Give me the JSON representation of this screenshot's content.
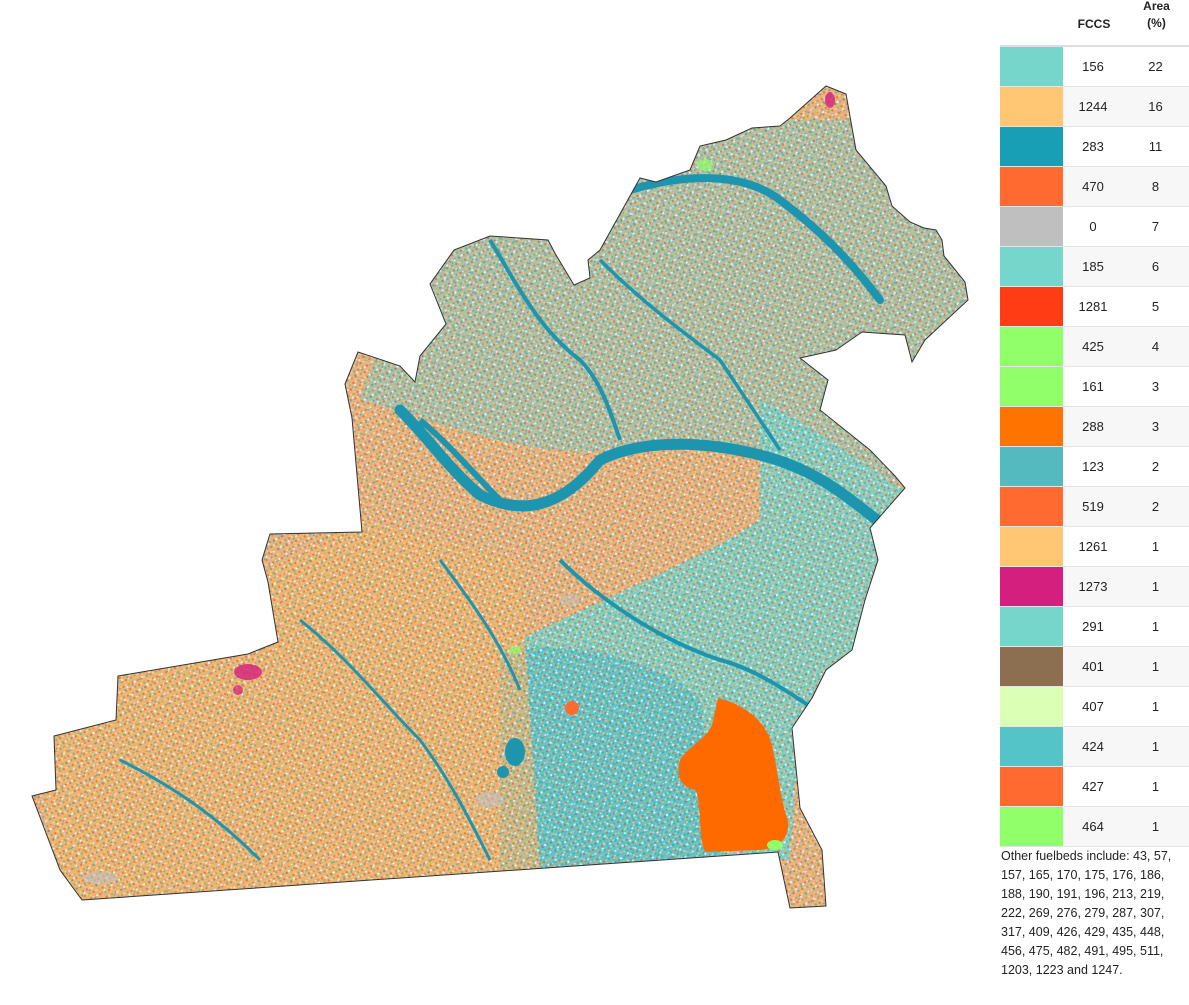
{
  "legend": {
    "header_fccs": "FCCS",
    "header_area_line1": "Area",
    "header_area_line2": "(%)",
    "rows": [
      {
        "fccs": "156",
        "area": "22",
        "color": "#77d6cc"
      },
      {
        "fccs": "1244",
        "area": "16",
        "color": "#ffc673"
      },
      {
        "fccs": "283",
        "area": "11",
        "color": "#189fb5"
      },
      {
        "fccs": "470",
        "area": "8",
        "color": "#ff6a30"
      },
      {
        "fccs": "0",
        "area": "7",
        "color": "#bfbfbf"
      },
      {
        "fccs": "185",
        "area": "6",
        "color": "#77d6cc"
      },
      {
        "fccs": "1281",
        "area": "5",
        "color": "#ff3c14"
      },
      {
        "fccs": "425",
        "area": "4",
        "color": "#90ff6a"
      },
      {
        "fccs": "161",
        "area": "3",
        "color": "#90ff6a"
      },
      {
        "fccs": "288",
        "area": "3",
        "color": "#ff7300"
      },
      {
        "fccs": "123",
        "area": "2",
        "color": "#55b9c0"
      },
      {
        "fccs": "519",
        "area": "2",
        "color": "#ff6a30"
      },
      {
        "fccs": "1261",
        "area": "1",
        "color": "#ffc673"
      },
      {
        "fccs": "1273",
        "area": "1",
        "color": "#d41f7e"
      },
      {
        "fccs": "291",
        "area": "1",
        "color": "#77d6cc"
      },
      {
        "fccs": "401",
        "area": "1",
        "color": "#8c6f51"
      },
      {
        "fccs": "407",
        "area": "1",
        "color": "#dbffb5"
      },
      {
        "fccs": "424",
        "area": "1",
        "color": "#55c4c8"
      },
      {
        "fccs": "427",
        "area": "1",
        "color": "#ff6a30"
      },
      {
        "fccs": "464",
        "area": "1",
        "color": "#90ff6a"
      }
    ],
    "other_note": "Other fuelbeds include: 43, 57, 157, 165, 170, 175, 176, 186, 188, 190, 191, 196, 213, 219, 222, 269, 276, 279, 287, 307, 317, 409, 426, 429, 435, 448, 456, 475, 482, 491, 495, 511, 1203, 1223 and 1247."
  }
}
